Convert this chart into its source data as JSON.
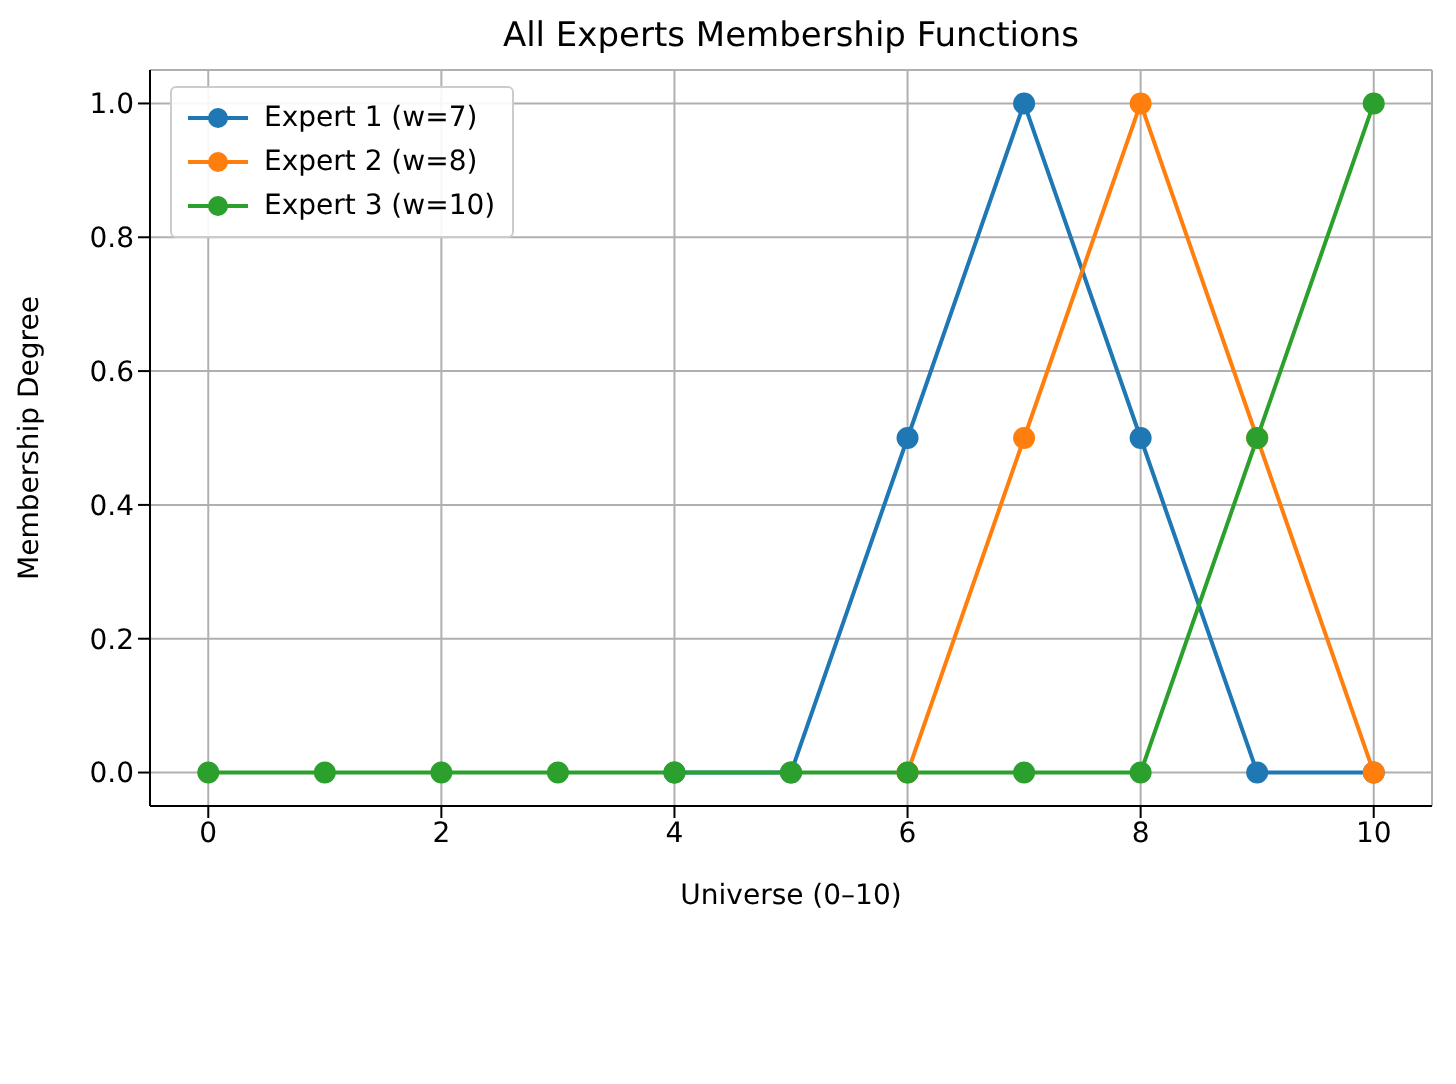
{
  "chart_data": {
    "type": "line",
    "title": "All Experts Membership Functions",
    "xlabel": "Universe (0–10)",
    "ylabel": "Membership Degree",
    "x": [
      0,
      1,
      2,
      3,
      4,
      5,
      6,
      7,
      8,
      9,
      10
    ],
    "series": [
      {
        "name": "Expert 1 (w=7)",
        "color": "#1f77b4",
        "values": [
          null,
          null,
          null,
          null,
          0,
          0,
          0.5,
          1,
          0.5,
          0,
          0
        ]
      },
      {
        "name": "Expert 2 (w=8)",
        "color": "#ff7f0e",
        "values": [
          null,
          null,
          null,
          null,
          null,
          null,
          0,
          0.5,
          1,
          0.5,
          0
        ]
      },
      {
        "name": "Expert 3 (w=10)",
        "color": "#2ca02c",
        "values": [
          0,
          0,
          0,
          0,
          0,
          0,
          0,
          0,
          0,
          0.5,
          1
        ]
      }
    ],
    "xlim": [
      -0.5,
      10.5
    ],
    "xticks": [
      0,
      2,
      4,
      6,
      8,
      10
    ],
    "ylim": [
      -0.05,
      1.05
    ],
    "yticks": [
      {
        "value": 0,
        "label": "0.0"
      },
      0.2,
      0.4,
      0.6,
      0.8,
      {
        "value": 1,
        "label": "1.0"
      }
    ],
    "grid": true,
    "legend": "top left",
    "marker": "circle",
    "line_style": "solid"
  }
}
